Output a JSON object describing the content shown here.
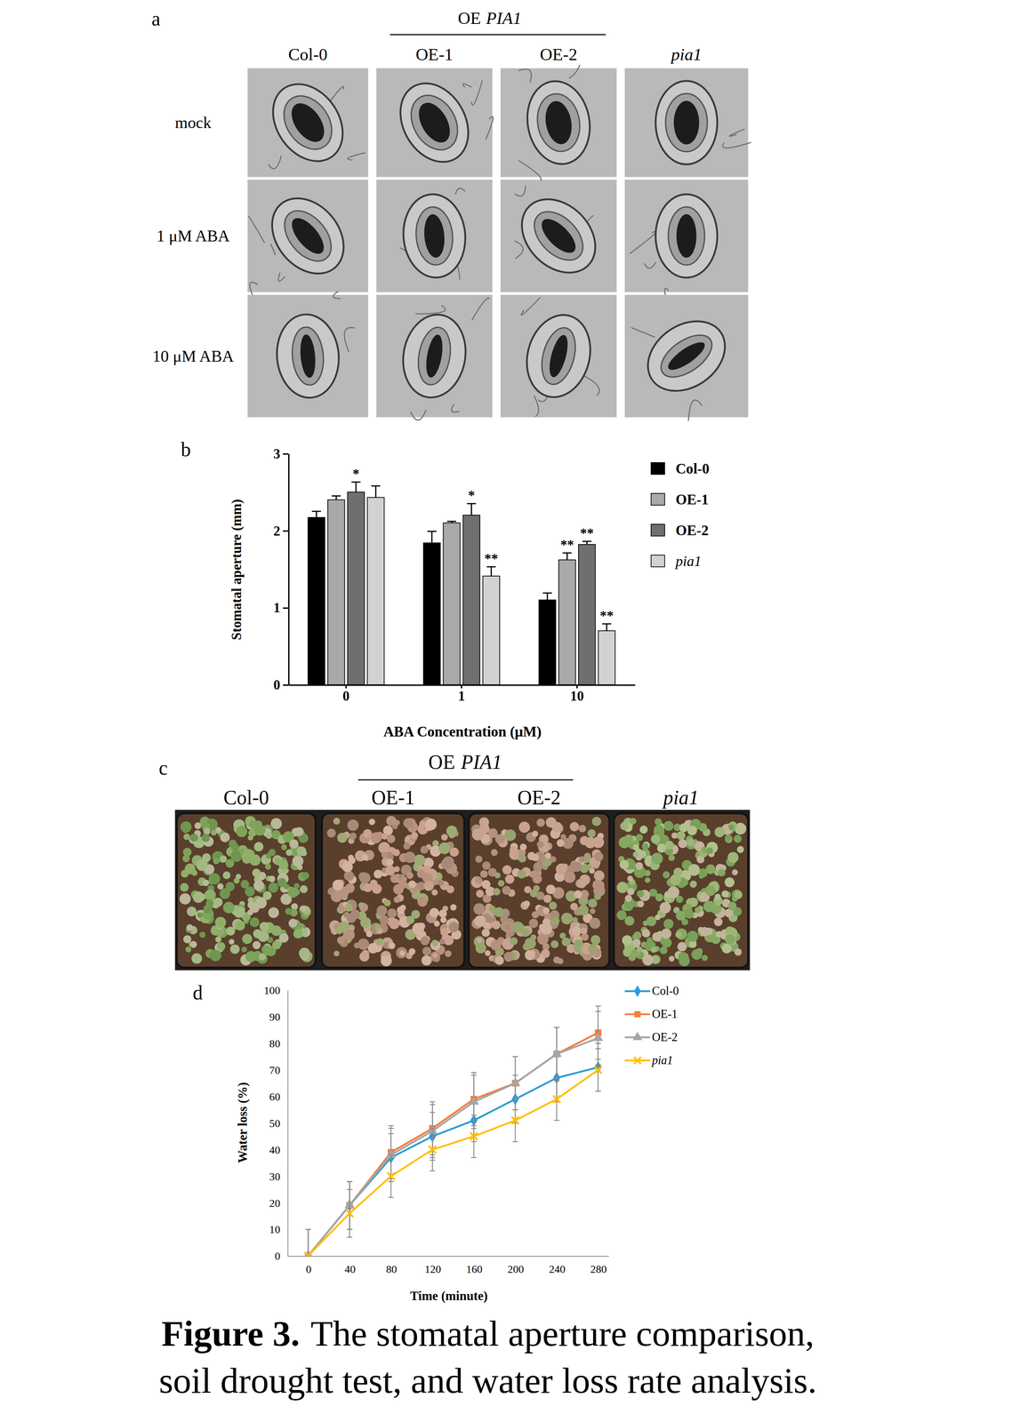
{
  "panel_a": {
    "label": "a",
    "group": {
      "prefix": "OE",
      "gene": "PIA1"
    },
    "columns": [
      "Col-0",
      "OE-1",
      "OE-2",
      "pia1"
    ],
    "rows": [
      "mock",
      "1 μM ABA",
      "10 μM ABA"
    ]
  },
  "panel_b": {
    "label": "b"
  },
  "panel_c": {
    "label": "c",
    "group": {
      "prefix": "OE",
      "gene": "PIA1"
    },
    "columns": [
      "Col-0",
      "OE-1",
      "OE-2",
      "pia1"
    ]
  },
  "panel_d": {
    "label": "d"
  },
  "chart_data": [
    {
      "type": "bar",
      "ylabel": "Stomatal aperture (mm)",
      "xlabel": "ABA Concentration (μM)",
      "categories": [
        "0",
        "1",
        "10"
      ],
      "ylim": [
        0,
        3
      ],
      "yticks": [
        0,
        1,
        2,
        3
      ],
      "grid": false,
      "legend": "right",
      "series": [
        {
          "name": "Col-0",
          "color": "#000000",
          "values": [
            2.17,
            1.84,
            1.1
          ],
          "errors": [
            0.08,
            0.15,
            0.09
          ],
          "significance": [
            null,
            null,
            null
          ]
        },
        {
          "name": "OE-1",
          "color": "#a9a9a9",
          "values": [
            2.4,
            2.1,
            1.62
          ],
          "errors": [
            0.05,
            0.02,
            0.09
          ],
          "significance": [
            null,
            null,
            "**"
          ]
        },
        {
          "name": "OE-2",
          "color": "#6f6f6f",
          "values": [
            2.5,
            2.2,
            1.82
          ],
          "errors": [
            0.13,
            0.15,
            0.04
          ],
          "significance": [
            "*",
            "*",
            "**"
          ]
        },
        {
          "name": "pia1",
          "color": "#d2d2d2",
          "values": [
            2.43,
            1.41,
            0.7
          ],
          "errors": [
            0.15,
            0.12,
            0.09
          ],
          "significance": [
            null,
            "**",
            "**"
          ]
        }
      ]
    },
    {
      "type": "line",
      "ylabel": "Water loss (%)",
      "xlabel": "Time (minute)",
      "x": [
        0,
        40,
        80,
        120,
        160,
        200,
        240,
        280
      ],
      "xlim": [
        -20,
        290
      ],
      "xticks": [
        0,
        40,
        80,
        120,
        160,
        200,
        240,
        280
      ],
      "ylim": [
        0,
        100
      ],
      "yticks": [
        0,
        10,
        20,
        30,
        40,
        50,
        60,
        70,
        80,
        90,
        100
      ],
      "grid": false,
      "legend": "right",
      "series": [
        {
          "name": "Col-0",
          "color": "#2e9bd6",
          "marker": "diamond",
          "line_style": "solid",
          "values": [
            0,
            19,
            37,
            45,
            51,
            59,
            67,
            71
          ],
          "errors": [
            10,
            9,
            9,
            9,
            8,
            9,
            9,
            9
          ]
        },
        {
          "name": "OE-1",
          "color": "#f47c3c",
          "marker": "square",
          "line_style": "solid",
          "values": [
            0,
            19,
            39,
            48,
            59,
            65,
            76,
            84
          ],
          "errors": [
            10,
            9,
            10,
            10,
            10,
            10,
            10,
            10
          ]
        },
        {
          "name": "OE-2",
          "color": "#a5a5a5",
          "marker": "triangle",
          "line_style": "solid",
          "values": [
            0,
            19,
            38,
            47,
            58,
            65,
            76,
            82
          ],
          "errors": [
            10,
            9,
            10,
            10,
            10,
            10,
            10,
            10
          ]
        },
        {
          "name": "pia1",
          "color": "#ffc000",
          "marker": "x",
          "line_style": "solid",
          "values": [
            0,
            16,
            30,
            40,
            45,
            51,
            59,
            70
          ],
          "errors": [
            10,
            9,
            8,
            8,
            8,
            8,
            8,
            8
          ]
        }
      ]
    }
  ],
  "caption": {
    "label": "Figure 3.",
    "lines": [
      "The stomatal aperture comparison,",
      "soil drought test, and water loss rate analysis."
    ]
  }
}
